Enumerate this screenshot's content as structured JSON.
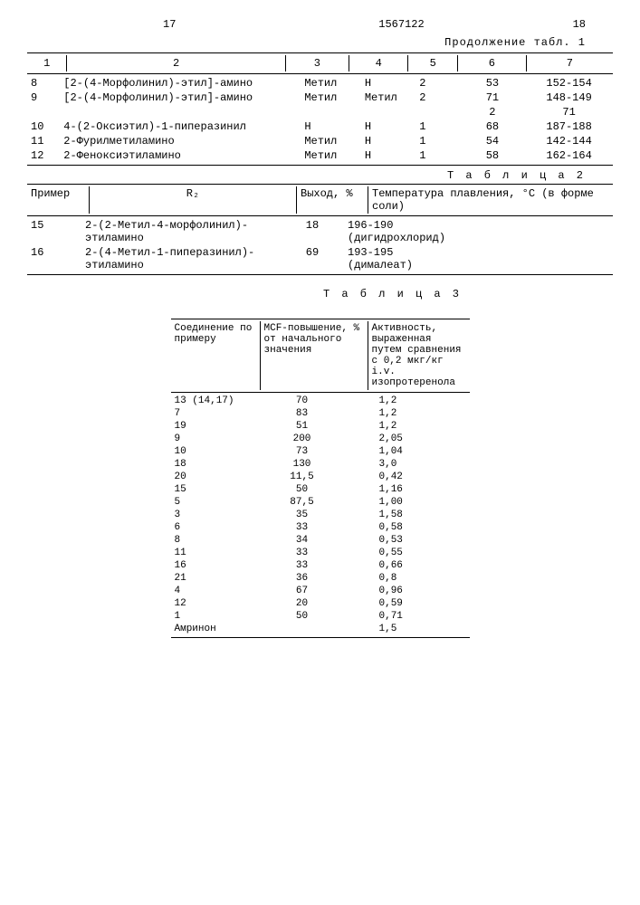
{
  "page_left": "17",
  "doc_number": "1567122",
  "page_right": "18",
  "continuation_label": "Продолжение табл. 1",
  "table1": {
    "headers": [
      "1",
      "2",
      "3",
      "4",
      "5",
      "6",
      "7"
    ],
    "rows": [
      {
        "c1": "8",
        "c2": "[2-(4-Морфолинил)-этил]-амино",
        "c3": "Метил",
        "c4": "Н",
        "c5": "2",
        "c6": "53",
        "c7": "152-154"
      },
      {
        "c1": "9",
        "c2": "[2-(4-Морфолинил)-этил]-амино",
        "c3": "Метил",
        "c4": "Метил",
        "c5": "2",
        "c6": "71",
        "c7": "148-149"
      },
      {
        "c1": "",
        "c2": "",
        "c3": "",
        "c4": "",
        "c5": "",
        "c6": "2",
        "c7": "71"
      },
      {
        "c1": "10",
        "c2": "4-(2-Оксиэтил)-1-пиперазинил",
        "c3": "Н",
        "c4": "Н",
        "c5": "1",
        "c6": "68",
        "c7": "187-188"
      },
      {
        "c1": "11",
        "c2": "2-Фурилметиламино",
        "c3": "Метил",
        "c4": "Н",
        "c5": "1",
        "c6": "54",
        "c7": "142-144"
      },
      {
        "c1": "12",
        "c2": "2-Феноксиэтиламино",
        "c3": "Метил",
        "c4": "Н",
        "c5": "1",
        "c6": "58",
        "c7": "162-164"
      }
    ]
  },
  "table2": {
    "title": "Т а б л и ц а 2",
    "headers": {
      "h1": "Пример",
      "h2": "R₂",
      "h3": "Выход, %",
      "h4": "Температура плавления, °С (в форме соли)"
    },
    "rows": [
      {
        "c1": "15",
        "c2": "2-(2-Метил-4-морфолинил)-этиламино",
        "c3": "18",
        "c4a": "196-190",
        "c4b": "(дигидрохлорид)"
      },
      {
        "c1": "16",
        "c2": "2-(4-Метил-1-пиперазинил)-этиламино",
        "c3": "69",
        "c4a": "193-195",
        "c4b": "(дималеат)"
      }
    ]
  },
  "table3": {
    "title": "Т а б л и ц а 3",
    "headers": {
      "h1": "Соединение по примеру",
      "h2": "MCF-повышение, % от начального значения",
      "h3": "Активность, выраженная путем сравнения с 0,2 мкг/кг i.v. изопротеренола"
    },
    "rows": [
      {
        "c1": "13 (14,17)",
        "c2": "70",
        "c3": "1,2"
      },
      {
        "c1": "7",
        "c2": "83",
        "c3": "1,2"
      },
      {
        "c1": "19",
        "c2": "51",
        "c3": "1,2"
      },
      {
        "c1": "9",
        "c2": "200",
        "c3": "2,05"
      },
      {
        "c1": "10",
        "c2": "73",
        "c3": "1,04"
      },
      {
        "c1": "18",
        "c2": "130",
        "c3": "3,0"
      },
      {
        "c1": "20",
        "c2": "11,5",
        "c3": "0,42"
      },
      {
        "c1": "15",
        "c2": "50",
        "c3": "1,16"
      },
      {
        "c1": "5",
        "c2": "87,5",
        "c3": "1,00"
      },
      {
        "c1": "3",
        "c2": "35",
        "c3": "1,58"
      },
      {
        "c1": "6",
        "c2": "33",
        "c3": "0,58"
      },
      {
        "c1": "8",
        "c2": "34",
        "c3": "0,53"
      },
      {
        "c1": "11",
        "c2": "33",
        "c3": "0,55"
      },
      {
        "c1": "16",
        "c2": "33",
        "c3": "0,66"
      },
      {
        "c1": "21",
        "c2": "36",
        "c3": "0,8"
      },
      {
        "c1": "4",
        "c2": "67",
        "c3": "0,96"
      },
      {
        "c1": "12",
        "c2": "20",
        "c3": "0,59"
      },
      {
        "c1": "1",
        "c2": "50",
        "c3": "0,71"
      },
      {
        "c1": "Амринон",
        "c2": "",
        "c3": "1,5"
      }
    ]
  }
}
